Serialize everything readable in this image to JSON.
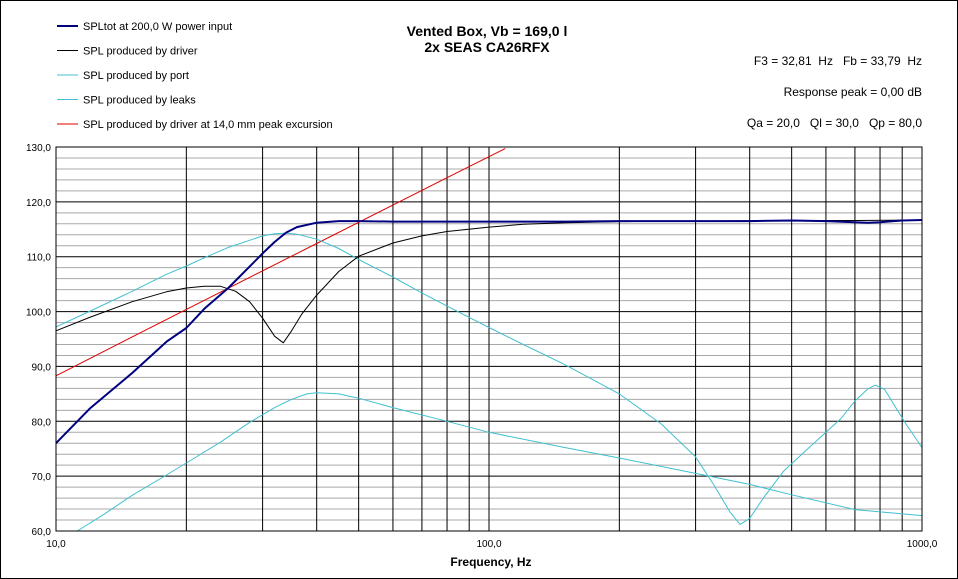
{
  "chart_data": {
    "type": "line",
    "title": "Vented Box, Vb = 169,0 l",
    "subtitle": "2x SEAS CA26RFX",
    "xlabel": "Frequency, Hz",
    "ylabel": "",
    "x_scale": "log",
    "xlim": [
      10,
      1000
    ],
    "ylim": [
      60,
      130
    ],
    "grid": true,
    "legend_position": "top-left",
    "x_tick_labels": [
      {
        "value": 10,
        "label": "10,0"
      },
      {
        "value": 100,
        "label": "100,0"
      },
      {
        "value": 1000,
        "label": "1000,0"
      }
    ],
    "y_tick_labels": [
      {
        "value": 60,
        "label": "60,0"
      },
      {
        "value": 70,
        "label": "70,0"
      },
      {
        "value": 80,
        "label": "80,0"
      },
      {
        "value": 90,
        "label": "90,0"
      },
      {
        "value": 100,
        "label": "100,0"
      },
      {
        "value": 110,
        "label": "110,0"
      },
      {
        "value": 120,
        "label": "120,0"
      },
      {
        "value": 130,
        "label": "130,0"
      }
    ],
    "info": [
      "F3 = 32,81  Hz   Fb = 33,79  Hz",
      "Response peak = 0,00 dB",
      "Qa = 20,0   Ql = 30,0   Qp = 80,0"
    ],
    "series": [
      {
        "name": "SPLtot at 200,0 W power input",
        "color": "#000080",
        "width": 2,
        "points": [
          [
            10,
            76
          ],
          [
            12,
            82.4
          ],
          [
            15,
            88.8
          ],
          [
            18,
            94.5
          ],
          [
            20,
            97
          ],
          [
            22,
            100.5
          ],
          [
            25,
            104.3
          ],
          [
            28,
            108.2
          ],
          [
            30,
            110.6
          ],
          [
            32,
            112.7
          ],
          [
            34,
            114.4
          ],
          [
            36,
            115.4
          ],
          [
            40,
            116.2
          ],
          [
            45,
            116.5
          ],
          [
            50,
            116.5
          ],
          [
            60,
            116.4
          ],
          [
            80,
            116.4
          ],
          [
            100,
            116.4
          ],
          [
            150,
            116.4
          ],
          [
            200,
            116.5
          ],
          [
            300,
            116.5
          ],
          [
            400,
            116.5
          ],
          [
            500,
            116.6
          ],
          [
            600,
            116.5
          ],
          [
            700,
            116.3
          ],
          [
            750,
            116.2
          ],
          [
            800,
            116.3
          ],
          [
            900,
            116.6
          ],
          [
            1000,
            116.7
          ]
        ]
      },
      {
        "name": "SPL produced by driver",
        "color": "#000000",
        "width": 1,
        "points": [
          [
            10,
            96.5
          ],
          [
            12,
            99
          ],
          [
            15,
            101.8
          ],
          [
            18,
            103.6
          ],
          [
            20,
            104.3
          ],
          [
            22,
            104.6
          ],
          [
            24,
            104.6
          ],
          [
            26,
            103.7
          ],
          [
            28,
            101.8
          ],
          [
            30,
            98.8
          ],
          [
            32,
            95.5
          ],
          [
            33.5,
            94.3
          ],
          [
            35,
            96.5
          ],
          [
            37,
            99.6
          ],
          [
            40,
            103
          ],
          [
            45,
            107.3
          ],
          [
            50,
            110.1
          ],
          [
            60,
            112.5
          ],
          [
            70,
            113.8
          ],
          [
            80,
            114.6
          ],
          [
            100,
            115.4
          ],
          [
            120,
            115.9
          ],
          [
            150,
            116.2
          ],
          [
            200,
            116.4
          ],
          [
            300,
            116.5
          ],
          [
            500,
            116.6
          ],
          [
            700,
            116.6
          ],
          [
            1000,
            116.7
          ]
        ]
      },
      {
        "name": "SPL produced by port",
        "color": "#40c0d0",
        "width": 1,
        "points": [
          [
            10,
            97.2
          ],
          [
            12,
            100.1
          ],
          [
            15,
            103.7
          ],
          [
            18,
            106.8
          ],
          [
            20,
            108.3
          ],
          [
            22,
            109.8
          ],
          [
            25,
            111.7
          ],
          [
            28,
            113
          ],
          [
            30,
            113.8
          ],
          [
            32,
            114.2
          ],
          [
            34,
            114.3
          ],
          [
            36,
            114.1
          ],
          [
            40,
            113.2
          ],
          [
            45,
            111.5
          ],
          [
            50,
            109.5
          ],
          [
            60,
            106.3
          ],
          [
            70,
            103.4
          ],
          [
            80,
            101
          ],
          [
            100,
            97.1
          ],
          [
            120,
            94
          ],
          [
            150,
            90.3
          ],
          [
            200,
            85
          ],
          [
            250,
            79.5
          ],
          [
            300,
            73.5
          ],
          [
            330,
            68.5
          ],
          [
            360,
            63.5
          ],
          [
            380,
            61.2
          ],
          [
            400,
            62.3
          ],
          [
            430,
            66
          ],
          [
            480,
            71
          ],
          [
            550,
            75.3
          ],
          [
            650,
            80.5
          ],
          [
            700,
            83.7
          ],
          [
            750,
            85.9
          ],
          [
            780,
            86.6
          ],
          [
            820,
            85.8
          ],
          [
            870,
            82.5
          ],
          [
            920,
            79.4
          ],
          [
            960,
            77.3
          ],
          [
            1000,
            75.2
          ]
        ]
      },
      {
        "name": "SPL produced by leaks",
        "color": "#40c0d0",
        "width": 1,
        "points": [
          [
            11.2,
            60
          ],
          [
            13,
            63.2
          ],
          [
            15,
            66.5
          ],
          [
            18,
            70.2
          ],
          [
            20,
            72.4
          ],
          [
            24,
            76.2
          ],
          [
            28,
            79.8
          ],
          [
            32,
            82.5
          ],
          [
            35,
            84
          ],
          [
            38,
            85
          ],
          [
            40,
            85.2
          ],
          [
            45,
            85
          ],
          [
            50,
            84.2
          ],
          [
            60,
            82.5
          ],
          [
            80,
            80
          ],
          [
            100,
            78
          ],
          [
            150,
            75.2
          ],
          [
            200,
            73.3
          ],
          [
            300,
            70.5
          ],
          [
            400,
            68.5
          ],
          [
            500,
            66.6
          ],
          [
            700,
            63.9
          ],
          [
            1000,
            62.8
          ]
        ]
      },
      {
        "name": "SPL produced by driver at 14,0 mm peak excursion",
        "color": "#e00000",
        "width": 1,
        "points": [
          [
            10,
            88.3
          ],
          [
            20,
            100.4
          ],
          [
            40,
            112.4
          ],
          [
            80,
            124.4
          ],
          [
            109,
            129.7
          ]
        ]
      }
    ]
  }
}
